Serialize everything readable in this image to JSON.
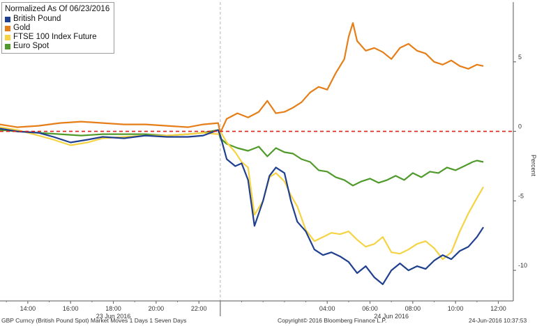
{
  "chart_data": {
    "type": "line",
    "title": "Normalized As Of 06/23/2016",
    "ylabel": "Percent",
    "xlabel": "",
    "ylim": [
      -12.2,
      9.3
    ],
    "xlim": [
      12.7,
      36.7
    ],
    "x_unit": "hours from 00:00 on 23 Jun 2016",
    "y_ticks": [
      5,
      0,
      -5,
      -10
    ],
    "y_tick_labels": [
      "5",
      "0",
      "-5",
      "-10"
    ],
    "x_ticks": [
      14,
      16,
      18,
      20,
      22,
      28,
      30,
      32,
      34,
      36
    ],
    "x_tick_labels": [
      "14:00",
      "16:00",
      "18:00",
      "20:00",
      "22:00",
      "04:00",
      "06:00",
      "08:00",
      "10:00",
      "12:00"
    ],
    "date_labels": [
      {
        "text": "23 Jun 2016",
        "x": 18
      },
      {
        "text": "24 Jun 2016",
        "x": 31
      }
    ],
    "divider_x": 23,
    "zero_line": {
      "y": 0,
      "color": "#e0201b",
      "style": "dashed"
    },
    "legend": "top-left",
    "grid": false,
    "series": [
      {
        "name": "British Pound",
        "color": "#1f3f8f",
        "x": [
          12.7,
          13.5,
          14.5,
          15.2,
          16.0,
          16.8,
          17.5,
          18.5,
          19.5,
          20.5,
          21.5,
          22.2,
          22.9,
          23.0,
          23.3,
          23.7,
          24.0,
          24.3,
          24.6,
          25.0,
          25.3,
          25.6,
          26.0,
          26.3,
          26.6,
          27.0,
          27.4,
          27.8,
          28.2,
          28.6,
          29.0,
          29.4,
          29.8,
          30.2,
          30.6,
          31.0,
          31.4,
          31.8,
          32.2,
          32.6,
          33.0,
          33.4,
          33.8,
          34.2,
          34.6,
          35.0,
          35.3
        ],
        "y": [
          0.2,
          0.0,
          -0.1,
          -0.4,
          -0.8,
          -0.6,
          -0.4,
          -0.5,
          -0.3,
          -0.4,
          -0.4,
          -0.3,
          0.1,
          -0.3,
          -2.0,
          -2.5,
          -2.3,
          -3.5,
          -6.8,
          -5.0,
          -3.2,
          -2.6,
          -3.0,
          -5.0,
          -6.5,
          -7.2,
          -8.5,
          -8.9,
          -8.7,
          -9.0,
          -9.4,
          -10.2,
          -9.7,
          -10.5,
          -11.0,
          -10.0,
          -9.5,
          -10.0,
          -9.7,
          -9.9,
          -9.3,
          -8.9,
          -9.2,
          -8.6,
          -8.3,
          -7.6,
          -6.9
        ]
      },
      {
        "name": "Gold",
        "color": "#e67e17",
        "x": [
          12.7,
          13.5,
          14.5,
          15.5,
          16.5,
          17.5,
          18.5,
          19.5,
          20.5,
          21.5,
          22.2,
          22.9,
          23.0,
          23.3,
          23.8,
          24.3,
          24.8,
          25.2,
          25.6,
          26.0,
          26.4,
          26.8,
          27.2,
          27.6,
          28.0,
          28.4,
          28.8,
          29.0,
          29.2,
          29.4,
          29.8,
          30.2,
          30.6,
          31.0,
          31.4,
          31.8,
          32.2,
          32.6,
          33.0,
          33.4,
          33.8,
          34.2,
          34.6,
          35.0,
          35.3
        ],
        "y": [
          0.5,
          0.3,
          0.4,
          0.6,
          0.7,
          0.6,
          0.5,
          0.5,
          0.4,
          0.3,
          0.5,
          0.6,
          -0.1,
          0.9,
          1.3,
          1.0,
          1.4,
          2.2,
          1.3,
          1.4,
          1.7,
          2.1,
          2.8,
          3.2,
          3.0,
          4.2,
          5.2,
          6.8,
          7.8,
          6.5,
          5.8,
          6.0,
          5.7,
          5.2,
          6.0,
          6.3,
          5.8,
          5.6,
          5.0,
          4.8,
          5.1,
          4.7,
          4.5,
          4.8,
          4.7
        ]
      },
      {
        "name": "FTSE 100 Index Future",
        "color": "#f5d342",
        "x": [
          12.7,
          13.5,
          14.5,
          15.2,
          16.0,
          16.8,
          17.5,
          18.5,
          19.5,
          20.5,
          21.5,
          22.2,
          22.9,
          23.0,
          23.3,
          23.7,
          24.0,
          24.3,
          24.6,
          25.0,
          25.3,
          25.6,
          26.0,
          26.3,
          26.6,
          27.0,
          27.4,
          27.8,
          28.2,
          28.6,
          29.0,
          29.4,
          29.8,
          30.2,
          30.6,
          31.0,
          31.4,
          31.8,
          32.2,
          32.6,
          33.0,
          33.4,
          33.8,
          34.2,
          34.6,
          35.0,
          35.3
        ],
        "y": [
          0.3,
          0.1,
          -0.3,
          -0.6,
          -1.0,
          -0.8,
          -0.5,
          -0.4,
          -0.3,
          -0.3,
          -0.2,
          -0.1,
          -0.2,
          0.0,
          -0.8,
          -1.5,
          -2.2,
          -2.6,
          -6.0,
          -5.0,
          -3.3,
          -3.0,
          -3.6,
          -4.6,
          -5.4,
          -7.1,
          -7.9,
          -7.6,
          -7.3,
          -7.4,
          -7.2,
          -7.8,
          -8.3,
          -8.1,
          -7.6,
          -8.7,
          -8.8,
          -8.5,
          -8.1,
          -7.9,
          -8.4,
          -9.2,
          -8.7,
          -7.2,
          -5.9,
          -4.8,
          -4.0
        ]
      },
      {
        "name": "Euro Spot",
        "color": "#4f9a2a",
        "x": [
          12.7,
          13.5,
          14.5,
          15.5,
          16.5,
          17.5,
          18.5,
          19.5,
          20.5,
          21.5,
          22.2,
          22.9,
          23.0,
          23.3,
          23.8,
          24.3,
          24.8,
          25.2,
          25.6,
          26.0,
          26.4,
          26.8,
          27.2,
          27.6,
          28.0,
          28.4,
          28.8,
          29.2,
          29.6,
          30.0,
          30.4,
          30.8,
          31.2,
          31.6,
          32.0,
          32.4,
          32.8,
          33.2,
          33.6,
          34.0,
          34.4,
          34.8,
          35.0,
          35.3
        ],
        "y": [
          0.1,
          0.0,
          -0.1,
          -0.2,
          -0.3,
          -0.2,
          -0.2,
          -0.2,
          -0.3,
          -0.2,
          -0.1,
          0.1,
          -0.5,
          -0.9,
          -1.2,
          -1.4,
          -1.1,
          -1.8,
          -1.2,
          -1.5,
          -1.6,
          -2.0,
          -2.2,
          -2.8,
          -2.9,
          -3.3,
          -3.5,
          -3.9,
          -3.6,
          -3.4,
          -3.7,
          -3.5,
          -3.2,
          -3.5,
          -3.0,
          -3.3,
          -2.9,
          -3.0,
          -2.6,
          -2.8,
          -2.5,
          -2.2,
          -2.1,
          -2.2
        ]
      }
    ]
  },
  "footer": {
    "left": "GBP Curncy (British Pound Spot) Market Moves 1 Days 1 Seven Days",
    "center": "Copyright© 2016 Bloomberg Finance L.P.",
    "right": "24-Jun-2016 10:37:53"
  }
}
